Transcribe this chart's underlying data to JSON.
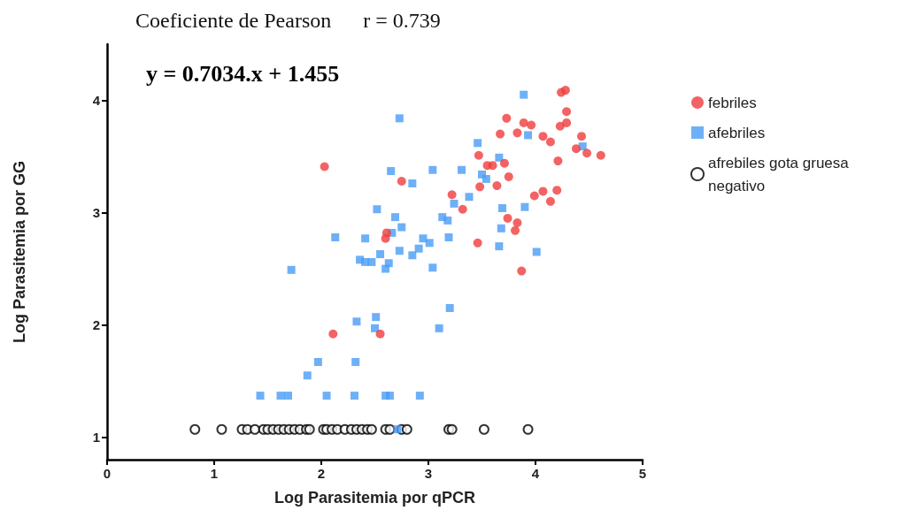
{
  "chart_data": {
    "type": "scatter",
    "title": "Coeficiente de Pearson      r = 0.739",
    "annotations": [
      "y = 0.7034.x + 1.455"
    ],
    "xlabel": "Log Parasitemia por qPCR",
    "ylabel": "Log Parasitemia por GG",
    "xlim": [
      0,
      5
    ],
    "xticks": [
      0,
      1,
      2,
      3,
      4,
      5
    ],
    "ylim": [
      0.8,
      4.5
    ],
    "yticks": [
      1,
      2,
      3,
      4
    ],
    "grid": false,
    "legend": "right",
    "series": [
      {
        "name": "febriles",
        "color": "#f03c3c",
        "marker": "circle",
        "x": [
          2.03,
          2.75,
          3.22,
          3.32,
          3.46,
          2.61,
          2.6,
          3.47,
          3.55,
          3.6,
          3.71,
          3.75,
          3.48,
          3.64,
          3.67,
          3.73,
          3.83,
          3.89,
          3.96,
          4.07,
          4.14,
          4.24,
          4.28,
          4.29,
          4.23,
          4.29,
          4.43,
          4.38,
          4.48,
          4.61,
          4.21,
          3.99,
          4.07,
          4.2,
          4.14,
          3.74,
          3.83,
          3.81,
          3.87,
          2.11,
          2.55
        ],
        "values": [
          3.41,
          3.28,
          3.16,
          3.03,
          2.73,
          2.82,
          2.77,
          3.51,
          3.42,
          3.42,
          3.44,
          3.32,
          3.23,
          3.24,
          3.7,
          3.84,
          3.71,
          3.8,
          3.78,
          3.68,
          3.63,
          4.07,
          4.09,
          3.9,
          3.77,
          3.8,
          3.68,
          3.57,
          3.53,
          3.51,
          3.46,
          3.15,
          3.19,
          3.2,
          3.1,
          2.95,
          2.91,
          2.84,
          2.48,
          1.92,
          1.92
        ]
      },
      {
        "name": "afebriles",
        "color": "#4a9cf5",
        "marker": "square",
        "x": [
          3.89,
          2.73,
          3.93,
          3.46,
          4.44,
          3.66,
          2.65,
          3.04,
          3.31,
          2.85,
          3.5,
          3.54,
          3.38,
          3.24,
          3.69,
          3.9,
          2.52,
          2.69,
          3.13,
          3.18,
          2.75,
          2.66,
          3.68,
          2.13,
          2.41,
          2.95,
          3.01,
          3.19,
          3.66,
          2.73,
          2.91,
          2.55,
          2.85,
          4.01,
          2.36,
          2.41,
          2.47,
          2.63,
          2.6,
          3.04,
          1.72,
          3.2,
          2.33,
          2.51,
          2.5,
          3.1,
          1.97,
          2.32,
          1.87,
          1.43,
          1.62,
          1.69,
          2.05,
          2.31,
          2.6,
          2.64,
          2.92,
          2.71
        ],
        "values": [
          4.05,
          3.84,
          3.69,
          3.62,
          3.59,
          3.49,
          3.37,
          3.38,
          3.38,
          3.26,
          3.34,
          3.3,
          3.14,
          3.08,
          3.04,
          3.05,
          3.03,
          2.96,
          2.96,
          2.93,
          2.87,
          2.82,
          2.86,
          2.78,
          2.77,
          2.77,
          2.73,
          2.78,
          2.7,
          2.66,
          2.68,
          2.63,
          2.62,
          2.65,
          2.58,
          2.56,
          2.56,
          2.55,
          2.5,
          2.51,
          2.49,
          2.15,
          2.03,
          2.07,
          1.97,
          1.97,
          1.67,
          1.67,
          1.55,
          1.37,
          1.37,
          1.37,
          1.37,
          1.37,
          1.37,
          1.37,
          1.37,
          1.07
        ]
      },
      {
        "name": "afrebiles gota gruesa negativo",
        "color": "#000000",
        "marker": "circle",
        "x": [
          0.82,
          1.07,
          1.26,
          1.31,
          1.38,
          1.46,
          1.5,
          1.55,
          1.6,
          1.65,
          1.7,
          1.75,
          1.8,
          1.86,
          1.89,
          2.02,
          2.05,
          2.1,
          2.15,
          2.22,
          2.28,
          2.33,
          2.38,
          2.43,
          2.47,
          2.6,
          2.64,
          2.75,
          2.8,
          3.19,
          3.22,
          3.52,
          3.93
        ],
        "values": [
          1.07,
          1.07,
          1.07,
          1.07,
          1.07,
          1.07,
          1.07,
          1.07,
          1.07,
          1.07,
          1.07,
          1.07,
          1.07,
          1.07,
          1.07,
          1.07,
          1.07,
          1.07,
          1.07,
          1.07,
          1.07,
          1.07,
          1.07,
          1.07,
          1.07,
          1.07,
          1.07,
          1.07,
          1.07,
          1.07,
          1.07,
          1.07,
          1.07
        ]
      }
    ]
  }
}
